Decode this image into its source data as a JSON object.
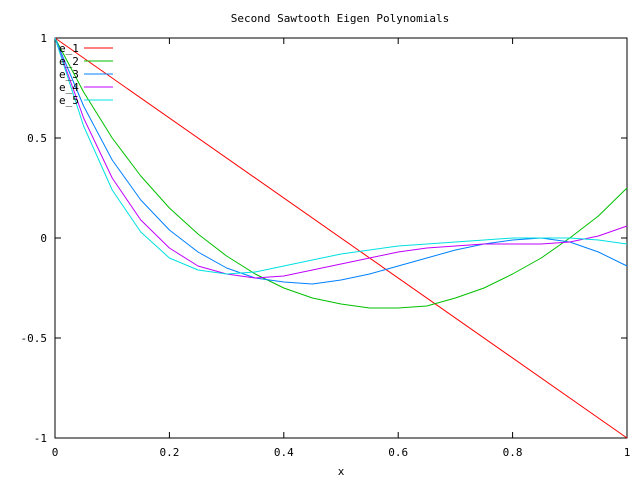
{
  "chart_data": {
    "type": "line",
    "title": "Second Sawtooth Eigen Polynomials",
    "xlabel": "x",
    "ylabel": "",
    "xlim": [
      0,
      1
    ],
    "ylim": [
      -1,
      1
    ],
    "xticks": [
      "0",
      "0.2",
      "0.4",
      "0.6",
      "0.8",
      "1"
    ],
    "yticks": [
      "1",
      "0.5",
      "0",
      "-0.5",
      "-1"
    ],
    "grid": false,
    "legend_position": "top-left",
    "series": [
      {
        "name": "e_1",
        "color": "#ff0000",
        "x": [
          0,
          1
        ],
        "y": [
          1,
          -1
        ]
      },
      {
        "name": "e_2",
        "color": "#00c000",
        "x": [
          0,
          0.05,
          0.1,
          0.15,
          0.2,
          0.25,
          0.3,
          0.35,
          0.4,
          0.45,
          0.5,
          0.55,
          0.6,
          0.65,
          0.7,
          0.75,
          0.8,
          0.85,
          0.9,
          0.95,
          1
        ],
        "y": [
          1,
          0.73,
          0.5,
          0.31,
          0.15,
          0.02,
          -0.09,
          -0.18,
          -0.25,
          -0.3,
          -0.33,
          -0.35,
          -0.35,
          -0.34,
          -0.3,
          -0.25,
          -0.18,
          -0.1,
          0,
          0.11,
          0.25
        ]
      },
      {
        "name": "e_3",
        "color": "#0080ff",
        "x": [
          0,
          0.05,
          0.1,
          0.15,
          0.2,
          0.25,
          0.3,
          0.35,
          0.4,
          0.45,
          0.5,
          0.55,
          0.6,
          0.65,
          0.7,
          0.75,
          0.8,
          0.85,
          0.9,
          0.95,
          1
        ],
        "y": [
          1,
          0.66,
          0.39,
          0.19,
          0.04,
          -0.07,
          -0.15,
          -0.2,
          -0.22,
          -0.23,
          -0.21,
          -0.18,
          -0.14,
          -0.1,
          -0.06,
          -0.03,
          -0.01,
          0,
          -0.02,
          -0.07,
          -0.14
        ]
      },
      {
        "name": "e_4",
        "color": "#c000ff",
        "x": [
          0,
          0.05,
          0.1,
          0.15,
          0.2,
          0.25,
          0.3,
          0.35,
          0.4,
          0.45,
          0.5,
          0.55,
          0.6,
          0.65,
          0.7,
          0.75,
          0.8,
          0.85,
          0.9,
          0.95,
          1
        ],
        "y": [
          1,
          0.6,
          0.3,
          0.09,
          -0.05,
          -0.14,
          -0.18,
          -0.2,
          -0.19,
          -0.16,
          -0.13,
          -0.1,
          -0.07,
          -0.05,
          -0.04,
          -0.03,
          -0.03,
          -0.03,
          -0.02,
          0.01,
          0.06
        ]
      },
      {
        "name": "e_5",
        "color": "#00e0e0",
        "x": [
          0,
          0.05,
          0.1,
          0.15,
          0.2,
          0.25,
          0.3,
          0.35,
          0.4,
          0.45,
          0.5,
          0.55,
          0.6,
          0.65,
          0.7,
          0.75,
          0.8,
          0.85,
          0.9,
          0.95,
          1
        ],
        "y": [
          1,
          0.56,
          0.24,
          0.03,
          -0.1,
          -0.16,
          -0.18,
          -0.17,
          -0.14,
          -0.11,
          -0.08,
          -0.06,
          -0.04,
          -0.03,
          -0.02,
          -0.01,
          0,
          0,
          0,
          -0.01,
          -0.03
        ]
      }
    ]
  }
}
